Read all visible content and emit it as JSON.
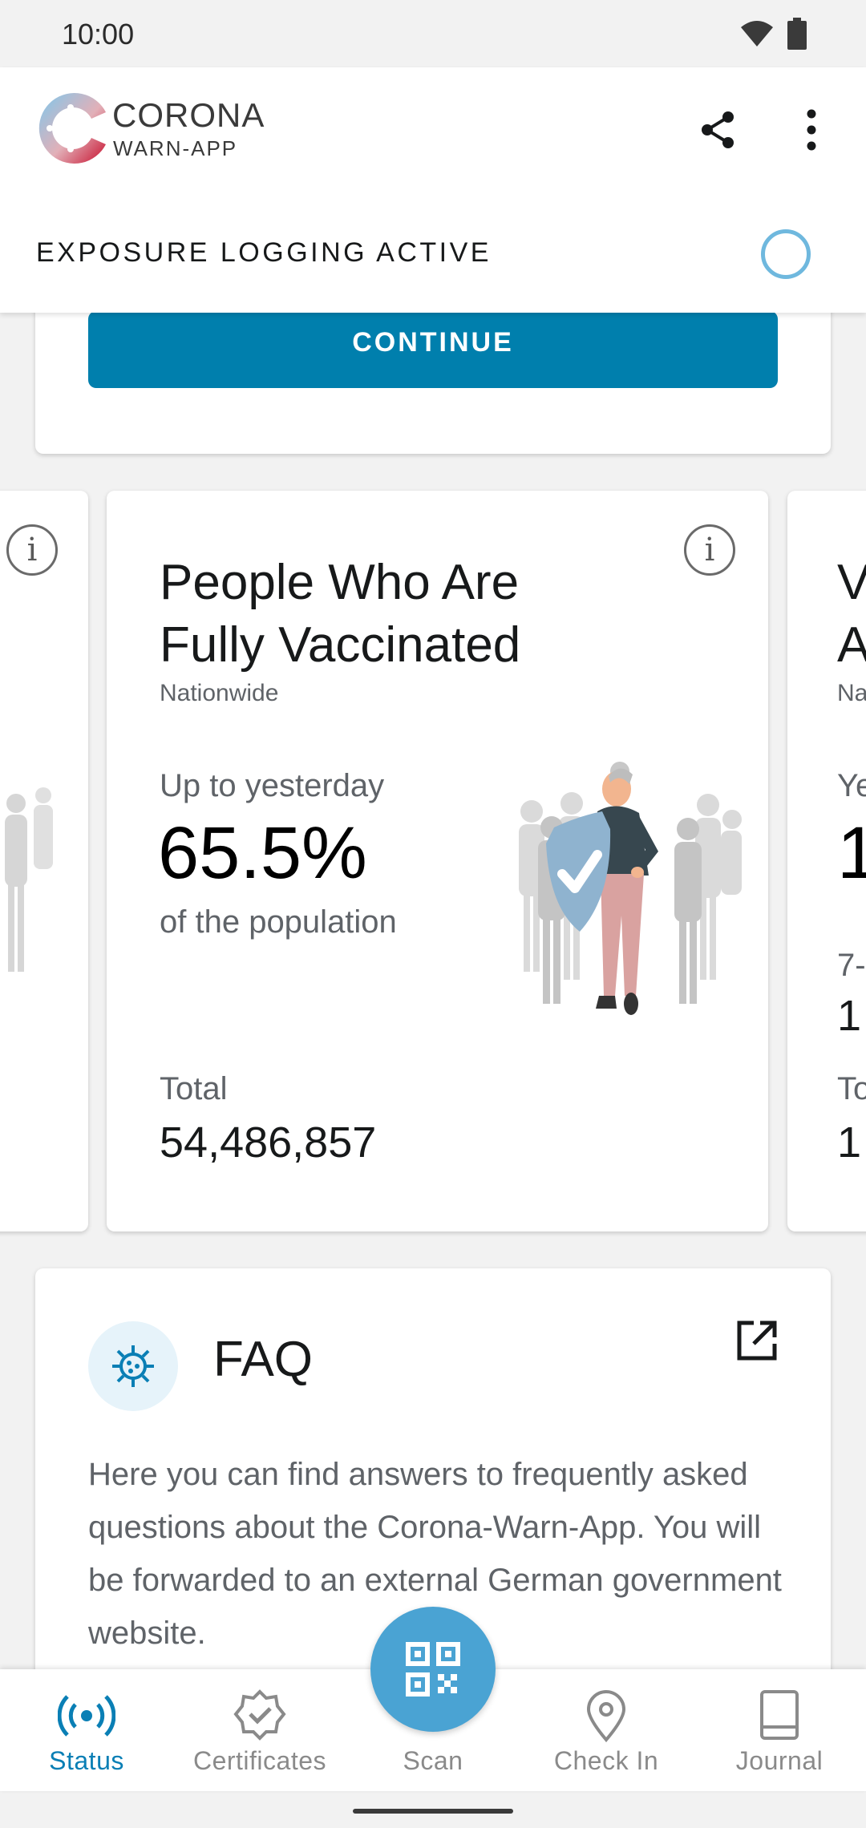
{
  "status_bar": {
    "time": "10:00"
  },
  "header": {
    "logo_line1": "CORONA",
    "logo_line2": "WARN-APP",
    "exposure_label": "EXPOSURE LOGGING ACTIVE"
  },
  "top_card": {
    "continue_label": "CONTINUE"
  },
  "vaccination_card": {
    "title": "People Who Are Fully Vaccinated",
    "subtitle": "Nationwide",
    "up_to_label": "Up to yesterday",
    "percentage": "65.5%",
    "of_population": "of the population",
    "total_label": "Total",
    "total_value": "54,486,857"
  },
  "faq_card": {
    "title": "FAQ",
    "text": "Here you can find answers to frequently asked questions about the Corona-Warn-App. You will be forwarded to an external German government website."
  },
  "bottom_nav": {
    "items": [
      {
        "label": "Status",
        "icon": "status-broadcast-icon",
        "active": true
      },
      {
        "label": "Certificates",
        "icon": "certificate-badge-icon",
        "active": false
      },
      {
        "label": "Scan",
        "icon": "qr-code-icon",
        "active": false
      },
      {
        "label": "Check In",
        "icon": "location-pin-icon",
        "active": false
      },
      {
        "label": "Journal",
        "icon": "book-icon",
        "active": false
      }
    ]
  },
  "colors": {
    "accent": "#007fad",
    "active_nav": "#0a7fb5",
    "fab": "#4aa3d3"
  }
}
